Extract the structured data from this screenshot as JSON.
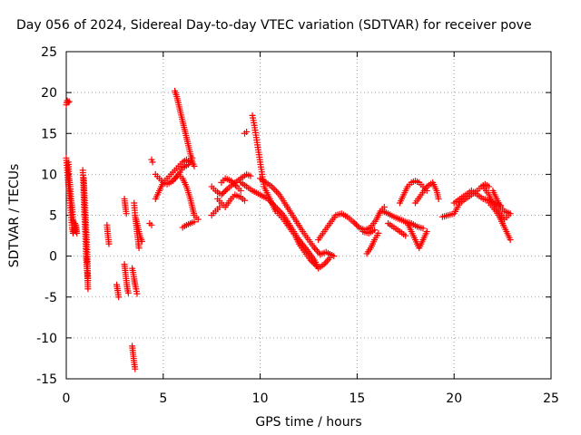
{
  "chart_data": {
    "type": "scatter",
    "title": "Day 056 of 2024, Sidereal Day-to-day VTEC variation (SDTVAR) for receiver pove",
    "xlabel": "GPS time / hours",
    "ylabel": "SDTVAR / TECUs",
    "xlim": [
      0,
      25
    ],
    "ylim": [
      -15,
      25
    ],
    "xticks": [
      0,
      5,
      10,
      15,
      20,
      25
    ],
    "yticks": [
      -15,
      -10,
      -5,
      0,
      5,
      10,
      15,
      20,
      25
    ],
    "grid": true,
    "marker": "+",
    "color": "#ff0000",
    "segments": [
      [
        [
          0.0,
          18.5
        ],
        [
          0.05,
          19.0
        ],
        [
          0.1,
          18.8
        ],
        [
          0.15,
          18.9
        ]
      ],
      [
        [
          0.0,
          12.0
        ],
        [
          0.05,
          10.5
        ],
        [
          0.1,
          9.0
        ],
        [
          0.15,
          8.0
        ],
        [
          0.2,
          6.5
        ],
        [
          0.25,
          5.0
        ],
        [
          0.3,
          3.5
        ],
        [
          0.35,
          2.8
        ],
        [
          0.4,
          3.2
        ],
        [
          0.45,
          4.0
        ],
        [
          0.5,
          3.0
        ]
      ],
      [
        [
          0.1,
          11.5
        ],
        [
          0.15,
          9.5
        ],
        [
          0.2,
          8.5
        ],
        [
          0.25,
          7.0
        ],
        [
          0.3,
          6.0
        ],
        [
          0.35,
          4.5
        ],
        [
          0.4,
          3.8
        ],
        [
          0.45,
          3.2
        ],
        [
          0.5,
          3.8
        ],
        [
          0.55,
          2.8
        ]
      ],
      [
        [
          0.85,
          10.5
        ],
        [
          0.88,
          9.0
        ],
        [
          0.9,
          7.5
        ],
        [
          0.92,
          6.0
        ],
        [
          0.95,
          4.5
        ],
        [
          0.98,
          3.0
        ],
        [
          1.0,
          1.5
        ],
        [
          1.02,
          0.0
        ],
        [
          1.05,
          -1.0
        ],
        [
          1.08,
          -2.0
        ],
        [
          1.1,
          -3.0
        ],
        [
          1.12,
          -4.0
        ]
      ],
      [
        [
          0.9,
          9.5
        ],
        [
          0.93,
          8.0
        ],
        [
          0.96,
          6.5
        ],
        [
          0.99,
          5.0
        ],
        [
          1.02,
          3.5
        ],
        [
          1.05,
          2.0
        ],
        [
          1.08,
          0.5
        ],
        [
          1.1,
          -1.5
        ],
        [
          1.12,
          -3.0
        ]
      ],
      [
        [
          2.1,
          3.8
        ],
        [
          2.15,
          2.5
        ],
        [
          2.2,
          1.5
        ]
      ],
      [
        [
          2.6,
          -3.5
        ],
        [
          2.65,
          -4.2
        ],
        [
          2.7,
          -5.0
        ]
      ],
      [
        [
          3.0,
          7.0
        ],
        [
          3.05,
          6.0
        ],
        [
          3.1,
          5.2
        ]
      ],
      [
        [
          3.0,
          -1.0
        ],
        [
          3.05,
          -2.0
        ],
        [
          3.1,
          -3.0
        ],
        [
          3.15,
          -4.0
        ],
        [
          3.2,
          -4.5
        ]
      ],
      [
        [
          3.4,
          -11.0
        ],
        [
          3.45,
          -12.0
        ],
        [
          3.5,
          -13.0
        ],
        [
          3.55,
          -13.8
        ]
      ],
      [
        [
          3.5,
          6.5
        ],
        [
          3.55,
          5.0
        ],
        [
          3.6,
          4.0
        ],
        [
          3.65,
          3.0
        ],
        [
          3.7,
          2.0
        ],
        [
          3.75,
          1.0
        ]
      ],
      [
        [
          3.4,
          -1.5
        ],
        [
          3.45,
          -2.0
        ],
        [
          3.5,
          -2.8
        ],
        [
          3.55,
          -3.5
        ],
        [
          3.6,
          -4.0
        ],
        [
          3.65,
          -4.6
        ]
      ],
      [
        [
          3.6,
          4.5
        ],
        [
          3.7,
          3.5
        ],
        [
          3.8,
          2.5
        ],
        [
          3.9,
          1.8
        ]
      ],
      [
        [
          4.4,
          11.8
        ],
        [
          4.45,
          11.5
        ]
      ],
      [
        [
          4.3,
          4.0
        ],
        [
          4.4,
          3.8
        ]
      ],
      [
        [
          4.6,
          7.0
        ],
        [
          4.8,
          8.0
        ],
        [
          5.0,
          9.0
        ],
        [
          5.2,
          9.5
        ],
        [
          5.4,
          10.0
        ],
        [
          5.6,
          10.5
        ],
        [
          5.8,
          11.0
        ],
        [
          6.0,
          11.5
        ],
        [
          6.2,
          11.8
        ],
        [
          6.4,
          11.5
        ]
      ],
      [
        [
          4.6,
          10.0
        ],
        [
          4.8,
          9.5
        ],
        [
          5.0,
          9.0
        ],
        [
          5.2,
          8.8
        ],
        [
          5.5,
          9.2
        ],
        [
          5.8,
          10.0
        ],
        [
          6.0,
          10.8
        ],
        [
          6.3,
          11.2
        ],
        [
          6.5,
          12.0
        ]
      ],
      [
        [
          5.6,
          20.2
        ],
        [
          5.7,
          19.5
        ],
        [
          5.8,
          18.5
        ],
        [
          5.9,
          17.5
        ],
        [
          6.0,
          16.5
        ],
        [
          6.1,
          15.5
        ],
        [
          6.2,
          14.5
        ],
        [
          6.3,
          13.5
        ],
        [
          6.4,
          12.5
        ],
        [
          6.5,
          11.5
        ],
        [
          6.6,
          11.0
        ]
      ],
      [
        [
          5.6,
          9.5
        ],
        [
          5.8,
          10.0
        ],
        [
          6.0,
          9.5
        ],
        [
          6.2,
          8.5
        ],
        [
          6.4,
          7.0
        ],
        [
          6.5,
          6.0
        ],
        [
          6.6,
          5.0
        ],
        [
          6.8,
          4.5
        ]
      ],
      [
        [
          6.0,
          3.5
        ],
        [
          6.2,
          3.8
        ],
        [
          6.4,
          4.0
        ],
        [
          6.6,
          4.2
        ]
      ],
      [
        [
          7.5,
          8.5
        ],
        [
          7.7,
          8.0
        ],
        [
          8.0,
          7.5
        ],
        [
          8.3,
          8.2
        ],
        [
          8.6,
          8.8
        ],
        [
          9.0,
          9.5
        ],
        [
          9.3,
          10.0
        ],
        [
          9.5,
          9.8
        ]
      ],
      [
        [
          7.8,
          7.0
        ],
        [
          8.0,
          6.5
        ],
        [
          8.2,
          6.0
        ],
        [
          8.5,
          7.0
        ],
        [
          8.7,
          7.5
        ],
        [
          9.0,
          7.2
        ],
        [
          9.2,
          6.8
        ]
      ],
      [
        [
          7.5,
          5.0
        ],
        [
          7.7,
          5.5
        ],
        [
          7.9,
          6.0
        ]
      ],
      [
        [
          8.0,
          9.0
        ],
        [
          8.2,
          9.5
        ],
        [
          8.5,
          9.2
        ],
        [
          8.8,
          8.5
        ],
        [
          9.0,
          8.0
        ]
      ],
      [
        [
          9.2,
          15.0
        ],
        [
          9.3,
          15.2
        ]
      ],
      [
        [
          9.6,
          17.2
        ],
        [
          9.7,
          16.0
        ],
        [
          9.8,
          14.5
        ],
        [
          9.9,
          13.0
        ],
        [
          10.0,
          11.5
        ],
        [
          10.1,
          10.0
        ],
        [
          10.2,
          8.5
        ],
        [
          10.4,
          7.5
        ],
        [
          10.6,
          6.5
        ],
        [
          10.8,
          5.5
        ],
        [
          11.0,
          5.0
        ],
        [
          11.2,
          4.5
        ],
        [
          11.5,
          3.5
        ],
        [
          11.8,
          2.5
        ],
        [
          12.0,
          1.5
        ],
        [
          12.3,
          0.5
        ],
        [
          12.6,
          -0.5
        ],
        [
          12.9,
          -1.2
        ]
      ],
      [
        [
          9.0,
          9.0
        ],
        [
          9.3,
          8.5
        ],
        [
          9.6,
          8.0
        ],
        [
          10.0,
          7.5
        ],
        [
          10.4,
          7.0
        ],
        [
          10.8,
          6.0
        ],
        [
          11.2,
          5.0
        ],
        [
          11.6,
          3.5
        ],
        [
          12.0,
          2.0
        ],
        [
          12.4,
          0.8
        ],
        [
          12.8,
          -0.5
        ],
        [
          13.0,
          -1.5
        ],
        [
          13.3,
          -1.0
        ],
        [
          13.6,
          -0.2
        ]
      ],
      [
        [
          10.0,
          9.5
        ],
        [
          10.3,
          9.0
        ],
        [
          10.6,
          8.5
        ],
        [
          11.0,
          7.5
        ],
        [
          11.4,
          6.0
        ],
        [
          11.8,
          4.5
        ],
        [
          12.2,
          3.0
        ],
        [
          12.5,
          2.0
        ],
        [
          12.8,
          1.0
        ],
        [
          13.1,
          0.2
        ],
        [
          13.4,
          0.5
        ],
        [
          13.8,
          0.0
        ]
      ],
      [
        [
          13.0,
          2.0
        ],
        [
          13.3,
          3.0
        ],
        [
          13.6,
          4.0
        ],
        [
          13.9,
          5.0
        ],
        [
          14.2,
          5.2
        ],
        [
          14.5,
          4.8
        ],
        [
          14.8,
          4.2
        ],
        [
          15.1,
          3.5
        ],
        [
          15.4,
          3.2
        ],
        [
          15.7,
          3.5
        ],
        [
          16.0,
          4.5
        ],
        [
          16.2,
          5.5
        ],
        [
          16.4,
          6.0
        ]
      ],
      [
        [
          15.3,
          3.0
        ],
        [
          15.6,
          2.8
        ],
        [
          15.9,
          3.2
        ]
      ],
      [
        [
          15.5,
          0.3
        ],
        [
          15.7,
          1.0
        ],
        [
          15.9,
          2.0
        ],
        [
          16.1,
          2.8
        ]
      ],
      [
        [
          16.3,
          5.5
        ],
        [
          16.6,
          5.2
        ],
        [
          16.9,
          4.8
        ],
        [
          17.2,
          4.5
        ],
        [
          17.5,
          4.2
        ],
        [
          17.8,
          4.0
        ],
        [
          18.1,
          3.6
        ],
        [
          18.4,
          3.4
        ]
      ],
      [
        [
          16.6,
          4.0
        ],
        [
          16.9,
          3.5
        ],
        [
          17.2,
          3.0
        ],
        [
          17.5,
          2.5
        ]
      ],
      [
        [
          17.2,
          6.5
        ],
        [
          17.4,
          7.5
        ],
        [
          17.6,
          8.5
        ],
        [
          17.8,
          9.0
        ],
        [
          18.0,
          9.2
        ],
        [
          18.2,
          9.0
        ],
        [
          18.4,
          8.5
        ],
        [
          18.6,
          8.0
        ]
      ],
      [
        [
          17.6,
          4.0
        ],
        [
          17.8,
          3.0
        ],
        [
          18.0,
          2.0
        ],
        [
          18.2,
          1.0
        ],
        [
          18.4,
          2.0
        ],
        [
          18.6,
          3.0
        ]
      ],
      [
        [
          18.0,
          6.5
        ],
        [
          18.3,
          7.5
        ],
        [
          18.6,
          8.5
        ],
        [
          18.9,
          9.0
        ],
        [
          19.1,
          8.0
        ],
        [
          19.2,
          7.0
        ]
      ],
      [
        [
          19.4,
          4.8
        ],
        [
          19.7,
          5.0
        ],
        [
          20.0,
          5.2
        ],
        [
          20.3,
          6.5
        ],
        [
          20.6,
          7.0
        ],
        [
          20.9,
          7.5
        ],
        [
          21.2,
          8.0
        ],
        [
          21.4,
          8.5
        ],
        [
          21.6,
          8.8
        ],
        [
          21.8,
          8.5
        ]
      ],
      [
        [
          20.0,
          6.5
        ],
        [
          20.3,
          7.0
        ],
        [
          20.6,
          7.5
        ],
        [
          20.9,
          8.0
        ],
        [
          21.2,
          7.5
        ],
        [
          21.5,
          7.0
        ],
        [
          21.8,
          6.8
        ],
        [
          22.1,
          6.5
        ],
        [
          22.4,
          6.2
        ]
      ],
      [
        [
          21.5,
          8.5
        ],
        [
          21.8,
          7.5
        ],
        [
          22.0,
          6.5
        ],
        [
          22.3,
          5.5
        ],
        [
          22.6,
          4.5
        ],
        [
          22.8,
          5.0
        ]
      ],
      [
        [
          21.8,
          6.5
        ],
        [
          22.0,
          6.0
        ],
        [
          22.3,
          5.0
        ],
        [
          22.5,
          4.0
        ],
        [
          22.7,
          3.0
        ],
        [
          22.9,
          2.0
        ]
      ],
      [
        [
          22.0,
          8.0
        ],
        [
          22.2,
          7.0
        ],
        [
          22.4,
          6.0
        ],
        [
          22.6,
          5.5
        ],
        [
          22.9,
          5.2
        ]
      ]
    ]
  }
}
